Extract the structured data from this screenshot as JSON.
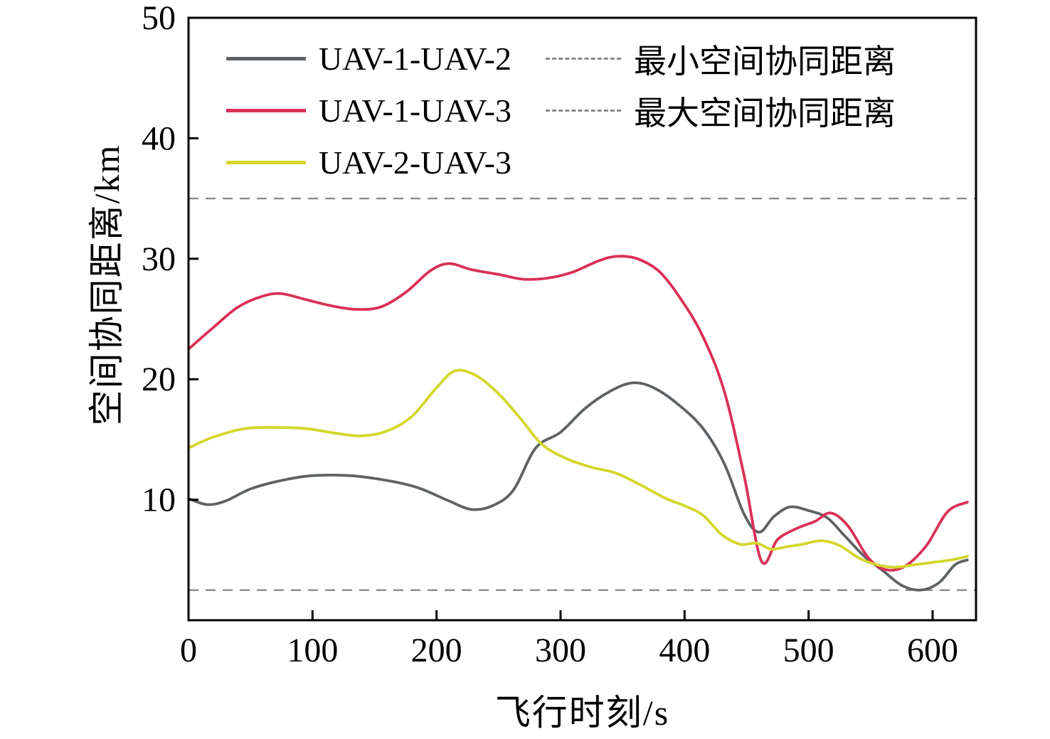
{
  "figure": {
    "background": "#ffffff",
    "axis_color": "#000000",
    "xlabel": "飞行时刻/s",
    "ylabel": "空间协同距离/km"
  },
  "legend": {
    "entries": [
      {
        "label": "UAV-1-UAV-2",
        "color": "#5e6265",
        "style": "solid"
      },
      {
        "label": "UAV-1-UAV-3",
        "color": "#d93057",
        "style": "solid"
      },
      {
        "label": "UAV-2-UAV-3",
        "color": "#d4d62a",
        "style": "solid"
      },
      {
        "label": "最小空间协同距离",
        "color": "#8a8a8a",
        "style": "dashed"
      },
      {
        "label": "最大空间协同距离",
        "color": "#8a8a8a",
        "style": "dashed"
      }
    ]
  },
  "chart_data": {
    "type": "line",
    "title": "",
    "xlabel": "飞行时刻/s",
    "ylabel": "空间协同距离/km",
    "xlim": [
      0,
      635
    ],
    "ylim": [
      0,
      50
    ],
    "xticks": [
      0,
      100,
      200,
      300,
      400,
      500,
      600
    ],
    "yticks": [
      10,
      20,
      30,
      40,
      50
    ],
    "grid": false,
    "legend_position": "top-left",
    "reference_lines": [
      {
        "label": "最大空间协同距离",
        "value": 35,
        "style": "dashed",
        "color": "#8a8a8a"
      },
      {
        "label": "最小空间协同距离",
        "value": 2.5,
        "style": "dashed",
        "color": "#8a8a8a"
      }
    ],
    "series": [
      {
        "name": "UAV-1-UAV-2",
        "color": "#5e6265",
        "x": [
          0,
          15,
          30,
          50,
          75,
          100,
          130,
          160,
          185,
          210,
          228,
          245,
          262,
          280,
          300,
          320,
          340,
          358,
          375,
          395,
          415,
          432,
          448,
          460,
          472,
          485,
          500,
          515,
          530,
          545,
          560,
          575,
          590,
          605,
          618,
          628
        ],
        "y": [
          10.1,
          9.6,
          9.9,
          10.9,
          11.6,
          12.0,
          12.0,
          11.6,
          11.0,
          9.9,
          9.2,
          9.5,
          10.8,
          14.3,
          15.6,
          17.6,
          19.0,
          19.7,
          19.3,
          17.9,
          15.9,
          13.0,
          8.8,
          7.3,
          8.6,
          9.4,
          9.1,
          8.5,
          6.9,
          5.3,
          4.1,
          2.9,
          2.5,
          3.1,
          4.6,
          5.0
        ]
      },
      {
        "name": "UAV-1-UAV-3",
        "color": "#d93057",
        "x": [
          0,
          20,
          40,
          60,
          75,
          95,
          115,
          135,
          155,
          175,
          195,
          210,
          228,
          250,
          270,
          290,
          310,
          330,
          345,
          362,
          380,
          398,
          415,
          432,
          448,
          462,
          475,
          490,
          505,
          518,
          532,
          548,
          562,
          578,
          595,
          612,
          628
        ],
        "y": [
          22.5,
          24.3,
          26.0,
          26.9,
          27.1,
          26.6,
          26.1,
          25.8,
          26.0,
          27.2,
          29.0,
          29.6,
          29.1,
          28.7,
          28.3,
          28.4,
          28.9,
          29.8,
          30.2,
          30.0,
          28.9,
          26.5,
          23.5,
          19.0,
          12.0,
          4.9,
          6.7,
          7.6,
          8.2,
          8.9,
          7.8,
          5.2,
          4.2,
          4.5,
          6.2,
          9.0,
          9.8
        ]
      },
      {
        "name": "UAV-2-UAV-3",
        "color": "#d4d62a",
        "x": [
          0,
          20,
          45,
          70,
          95,
          120,
          140,
          160,
          180,
          200,
          215,
          232,
          250,
          268,
          285,
          305,
          325,
          345,
          365,
          385,
          400,
          415,
          430,
          445,
          458,
          470,
          482,
          495,
          510,
          525,
          540,
          555,
          570,
          585,
          600,
          615,
          628
        ],
        "y": [
          14.3,
          15.2,
          15.9,
          16.0,
          15.9,
          15.5,
          15.3,
          15.7,
          16.9,
          19.3,
          20.7,
          20.3,
          18.8,
          16.7,
          14.6,
          13.4,
          12.7,
          12.2,
          11.2,
          10.1,
          9.5,
          8.7,
          7.1,
          6.3,
          6.4,
          5.9,
          6.1,
          6.3,
          6.6,
          6.2,
          5.2,
          4.6,
          4.4,
          4.6,
          4.8,
          5.0,
          5.3
        ]
      }
    ]
  }
}
